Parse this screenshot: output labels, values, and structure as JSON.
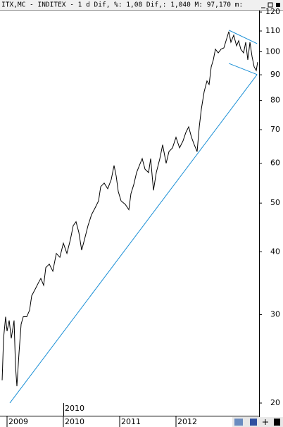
{
  "chart_data": {
    "type": "line",
    "title": "ITX,MC - INDITEX - 1 d Dif, %: 1,08 Dif,: 1,040 M: 97,170 m:",
    "x_sublabel": "2010",
    "log_scale": true,
    "xlim": [
      2008.875,
      2013.475
    ],
    "ylim": [
      18.87,
      120.8
    ],
    "xticks": [
      2009,
      2010,
      2011,
      2012
    ],
    "yticks": [
      20,
      30,
      40,
      50,
      60,
      70,
      80,
      90,
      100,
      110,
      120
    ],
    "series": [
      {
        "color": "#000000",
        "x": [
          2008.913,
          2008.938,
          2008.975,
          2009,
          2009.038,
          2009.075,
          2009.125,
          2009.15,
          2009.175,
          2009.213,
          2009.25,
          2009.288,
          2009.35,
          2009.4,
          2009.438,
          2009.5,
          2009.563,
          2009.6,
          2009.65,
          2009.688,
          2009.75,
          2009.813,
          2009.875,
          2009.938,
          2010,
          2010.063,
          2010.125,
          2010.175,
          2010.225,
          2010.275,
          2010.325,
          2010.375,
          2010.438,
          2010.5,
          2010.563,
          2010.625,
          2010.663,
          2010.725,
          2010.788,
          2010.85,
          2010.9,
          2010.938,
          2010.975,
          2011.025,
          2011.1,
          2011.163,
          2011.2,
          2011.25,
          2011.3,
          2011.35,
          2011.4,
          2011.45,
          2011.513,
          2011.55,
          2011.6,
          2011.65,
          2011.713,
          2011.763,
          2011.825,
          2011.875,
          2011.938,
          2012,
          2012.063,
          2012.125,
          2012.175,
          2012.225,
          2012.275,
          2012.325,
          2012.375,
          2012.413,
          2012.45,
          2012.5,
          2012.55,
          2012.588,
          2012.625,
          2012.663,
          2012.7,
          2012.75,
          2012.8,
          2012.85,
          2012.9,
          2012.938,
          2012.975,
          2013.025,
          2013.075,
          2013.113,
          2013.15,
          2013.2,
          2013.238,
          2013.275,
          2013.313,
          2013.35,
          2013.388,
          2013.425,
          2013.45
        ],
        "values": [
          22.2,
          26.9,
          29.7,
          27.8,
          29.2,
          26.9,
          29.2,
          23.7,
          21.6,
          25.2,
          28.7,
          29.7,
          29.7,
          30.6,
          32.7,
          33.7,
          34.8,
          35.4,
          34.3,
          37.2,
          37.8,
          36.6,
          39.7,
          39.0,
          41.6,
          39.7,
          42.3,
          45.1,
          45.9,
          43.7,
          40.3,
          42.3,
          45.1,
          47.4,
          48.9,
          50.5,
          53.9,
          54.8,
          53.4,
          55.7,
          59.4,
          56.6,
          52.7,
          50.5,
          49.7,
          48.5,
          52.2,
          54.4,
          57.5,
          59.4,
          61.3,
          58.4,
          57.5,
          61.3,
          53.0,
          57.5,
          61.3,
          65.3,
          60.0,
          63.3,
          64.4,
          67.6,
          64.4,
          66.5,
          69.1,
          70.9,
          67.6,
          65.3,
          63.3,
          70.9,
          76.9,
          83.3,
          87.5,
          86.1,
          93.3,
          96.4,
          101.2,
          99.5,
          101.2,
          101.8,
          106.2,
          109.7,
          104.5,
          107.9,
          102.8,
          105.2,
          101.2,
          99.5,
          104.5,
          96.4,
          104.5,
          97.9,
          93.3,
          91.8,
          95.4
        ]
      }
    ],
    "trendlines": [
      {
        "color": "#1a8fd6",
        "x": [
          2009.05,
          2013.44
        ],
        "values": [
          20,
          90.1
        ]
      },
      {
        "color": "#1a8fd6",
        "x": [
          2012.94,
          2013.44
        ],
        "values": [
          110.4,
          103.8
        ]
      },
      {
        "color": "#1a8fd6",
        "x": [
          2012.94,
          2013.44
        ],
        "values": [
          94.8,
          90.1
        ]
      }
    ]
  }
}
